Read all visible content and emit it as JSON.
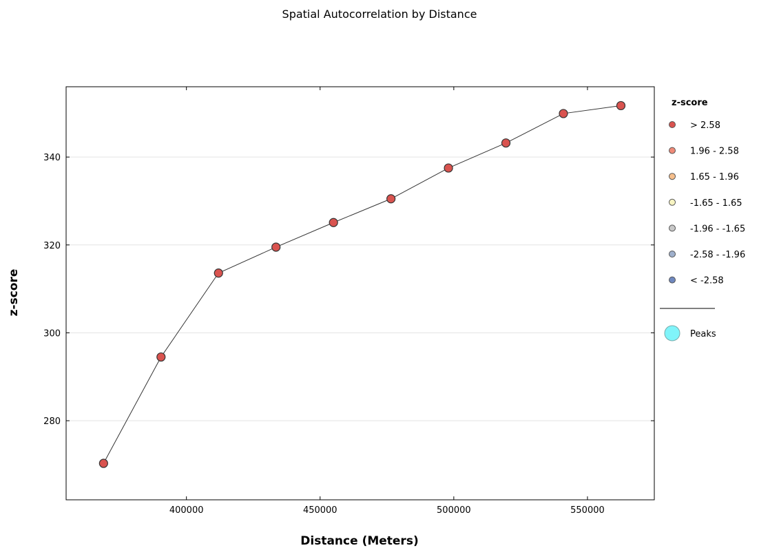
{
  "chart_data": {
    "type": "line",
    "title": "Spatial Autocorrelation by Distance",
    "xlabel": "Distance (Meters)",
    "ylabel": "z-score",
    "xlim": [
      355000,
      575000
    ],
    "ylim": [
      262000,
      356000
    ],
    "xticks": [
      {
        "value": 400000,
        "label": "400000"
      },
      {
        "value": 450000,
        "label": "450000"
      },
      {
        "value": 500000,
        "label": "500000"
      },
      {
        "value": 550000,
        "label": "550000"
      }
    ],
    "yticks": [
      {
        "value": 280000,
        "label": "280"
      },
      {
        "value": 300000,
        "label": "300"
      },
      {
        "value": 320000,
        "label": "320"
      },
      {
        "value": 340000,
        "label": "340"
      }
    ],
    "grid": "horizontal",
    "series": [
      {
        "x": [
          369000,
          390500,
          412000,
          433500,
          455000,
          476500,
          498000,
          519500,
          541000,
          562500
        ],
        "y": [
          270300,
          294500,
          313600,
          319500,
          325100,
          330500,
          337500,
          343200,
          349900,
          351700
        ],
        "marker_color": "#d9534f",
        "line_color": "#333333"
      }
    ],
    "legend": {
      "placement": "right",
      "title": "z-score",
      "entries": [
        {
          "label": "> 2.58",
          "color": "#d9534f"
        },
        {
          "label": "1.96 - 2.58",
          "color": "#ef8a78"
        },
        {
          "label": "1.65 - 1.96",
          "color": "#f6bf8c"
        },
        {
          "label": "-1.65 - 1.65",
          "color": "#f7f4c2"
        },
        {
          "label": "-1.96 - -1.65",
          "color": "#c8c8c8"
        },
        {
          "label": "-2.58 - -1.96",
          "color": "#9fb0cc"
        },
        {
          "label": "< -2.58",
          "color": "#6f88bf"
        }
      ],
      "peaks_label": "Peaks",
      "peaks_color": "#80f4fa"
    }
  }
}
